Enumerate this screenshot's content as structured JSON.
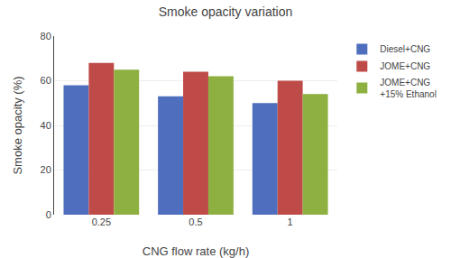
{
  "chart_data": {
    "type": "bar",
    "title": "Smoke opacity variation",
    "xlabel": "CNG flow rate (kg/h)",
    "ylabel": "Smoke opacity (%)",
    "categories": [
      "0.25",
      "0.5",
      "1"
    ],
    "series": [
      {
        "name": "Diesel+CNG",
        "color": "#4F6EBE",
        "values": [
          58,
          53,
          50
        ]
      },
      {
        "name": "JOME+CNG",
        "color": "#BE4B48",
        "values": [
          68,
          64,
          60
        ]
      },
      {
        "name": "JOME+CNG\n+15% Ethanol",
        "color": "#8DB040",
        "values": [
          65,
          62,
          54
        ]
      }
    ],
    "ylim": [
      0,
      80
    ],
    "yticks": [
      0,
      20,
      40,
      60,
      80
    ],
    "grid": true,
    "legend": "upper right"
  }
}
